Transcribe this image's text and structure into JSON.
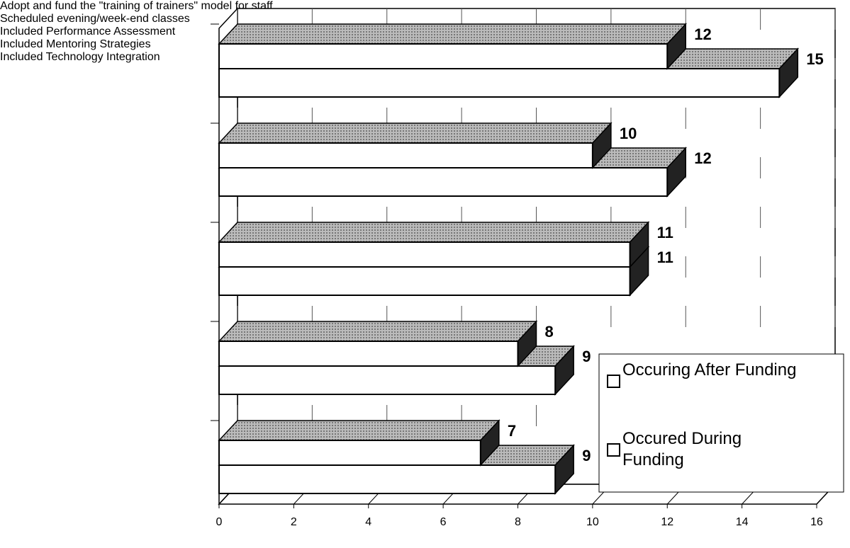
{
  "chart_data": {
    "type": "bar3d",
    "orientation": "horizontal",
    "categories": [
      "Included Technology Integration",
      "Included Mentoring Strategies",
      "Included Performance Assessment",
      "Scheduled evening/week-end classes",
      "Adopt and fund the \"training of trainers\" model for staff"
    ],
    "series": [
      {
        "name": "Occuring After Funding",
        "color": "#ffffff",
        "values": [
          12,
          10,
          11,
          8,
          7
        ]
      },
      {
        "name": "Occured During Funding",
        "color": "#ffffff",
        "values": [
          15,
          12,
          11,
          9,
          9
        ]
      }
    ],
    "xlim": [
      0,
      16
    ],
    "xticks": [
      0,
      2,
      4,
      6,
      8,
      10,
      12,
      14,
      16
    ],
    "grid": true
  }
}
